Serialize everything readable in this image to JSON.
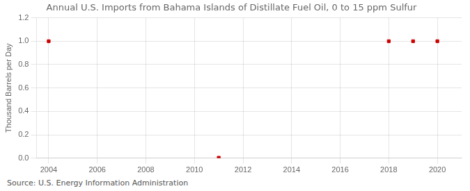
{
  "chart_data": {
    "type": "scatter",
    "title": "Annual U.S. Imports from Bahama Islands of Distillate Fuel Oil, 0 to 15 ppm Sulfur",
    "y_label": "Thousand Barrels per Day",
    "source": "Source: U.S. Energy Information Administration",
    "x": [
      2004,
      2011,
      2018,
      2019,
      2020
    ],
    "values": [
      1.0,
      0.004,
      1.0,
      1.0,
      1.0
    ],
    "color": "#CC0000",
    "marker": "square",
    "xlim": [
      2003.5,
      2021
    ],
    "ylim": [
      0.0,
      1.2
    ],
    "xticks": [
      2004,
      2006,
      2008,
      2010,
      2012,
      2014,
      2016,
      2018,
      2020
    ],
    "yticks": [
      {
        "value": 0,
        "label": "0.0"
      },
      0.2,
      0.4,
      0.6,
      0.8,
      {
        "value": 1,
        "label": "1.0"
      },
      1.2
    ],
    "grid": true
  }
}
